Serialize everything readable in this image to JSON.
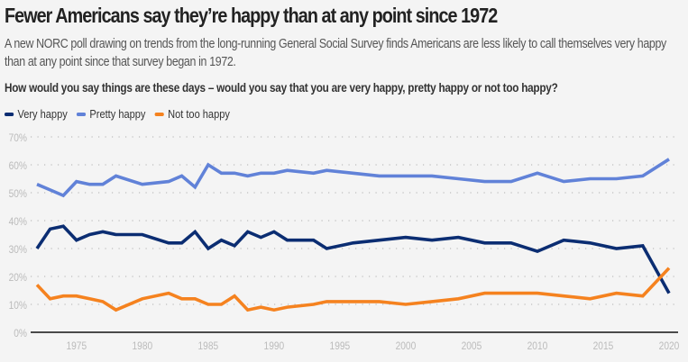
{
  "header": {
    "title": "Fewer Americans say they’re happy than at any point since 1972",
    "subtitle": "A new NORC poll drawing on trends from the long-running General Social Survey finds Americans are less likely to call themselves very happy than at any point since that survey began in 1972.",
    "question": "How would you say things are these days – would you say that you are very happy, pretty happy or not too happy?"
  },
  "chart_data": {
    "type": "line",
    "title": "Fewer Americans say they’re happy than at any point since 1972",
    "xlabel": "",
    "ylabel": "",
    "x": [
      1972,
      1973,
      1974,
      1975,
      1976,
      1977,
      1978,
      1980,
      1982,
      1983,
      1984,
      1985,
      1986,
      1987,
      1988,
      1989,
      1990,
      1991,
      1993,
      1994,
      1996,
      1998,
      2000,
      2002,
      2004,
      2006,
      2008,
      2010,
      2012,
      2014,
      2016,
      2018,
      2020
    ],
    "series": [
      {
        "name": "Very happy",
        "color": "#0b2d72",
        "values": [
          30,
          37,
          38,
          33,
          35,
          36,
          35,
          35,
          32,
          32,
          36,
          30,
          33,
          31,
          36,
          34,
          36,
          33,
          33,
          30,
          32,
          33,
          34,
          33,
          34,
          32,
          32,
          29,
          33,
          32,
          30,
          31,
          14
        ]
      },
      {
        "name": "Pretty happy",
        "color": "#6182d8",
        "values": [
          53,
          51,
          49,
          54,
          53,
          53,
          56,
          53,
          54,
          56,
          52,
          60,
          57,
          57,
          56,
          57,
          57,
          58,
          57,
          58,
          57,
          56,
          56,
          56,
          55,
          54,
          54,
          57,
          54,
          55,
          55,
          56,
          62
        ]
      },
      {
        "name": "Not too happy",
        "color": "#f5821f",
        "values": [
          17,
          12,
          13,
          13,
          12,
          11,
          8,
          12,
          14,
          12,
          12,
          10,
          10,
          13,
          8,
          9,
          8,
          9,
          10,
          11,
          11,
          11,
          10,
          11,
          12,
          14,
          14,
          14,
          13,
          12,
          14,
          13,
          23
        ]
      }
    ],
    "xlim": [
      1972,
      2020
    ],
    "ylim": [
      0,
      70
    ],
    "x_ticks": [
      1975,
      1980,
      1985,
      1990,
      1995,
      2000,
      2005,
      2010,
      2015,
      2020
    ],
    "x_tick_labels": [
      "1975",
      "1980",
      "1985",
      "1990",
      "1995",
      "2000",
      "2005",
      "2010",
      "2015",
      "2020"
    ],
    "y_ticks": [
      0,
      10,
      20,
      30,
      40,
      50,
      60,
      70
    ],
    "y_tick_labels": [
      "0%",
      "10%",
      "20%",
      "30%",
      "40%",
      "50%",
      "60%",
      "70%"
    ],
    "grid": true,
    "legend_position": "top-left"
  }
}
